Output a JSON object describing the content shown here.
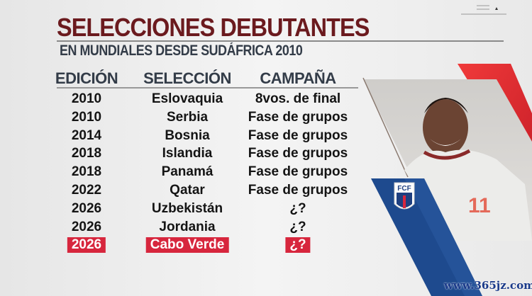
{
  "title": "SELECCIONES DEBUTANTES",
  "subtitle": "EN MUNDIALES DESDE SUDÁFRICA 2010",
  "columns": [
    "EDICIÓN",
    "SELECCIÓN",
    "CAMPAÑA"
  ],
  "rows": [
    [
      "2010",
      "Eslovaquia",
      "8vos. de final"
    ],
    [
      "2010",
      "Serbia",
      "Fase de grupos"
    ],
    [
      "2014",
      "Bosnia",
      "Fase de grupos"
    ],
    [
      "2018",
      "Islandia",
      "Fase de grupos"
    ],
    [
      "2018",
      "Panamá",
      "Fase de grupos"
    ],
    [
      "2022",
      "Qatar",
      "Fase de grupos"
    ],
    [
      "2026",
      "Uzbekistán",
      "¿?"
    ],
    [
      "2026",
      "Jordania",
      "¿?"
    ],
    [
      "2026",
      "Cabo Verde",
      "¿?"
    ]
  ],
  "highlight_row": 8,
  "crest": {
    "text": "FCF"
  },
  "jersey_number": "11",
  "watermark": "www.365jz.com",
  "colors": {
    "title": "#6b1a1e",
    "subtitle": "#333c48",
    "highlight": "#d7263d",
    "blue_band": "#1e4a8e",
    "red_band": "#e5262e"
  }
}
